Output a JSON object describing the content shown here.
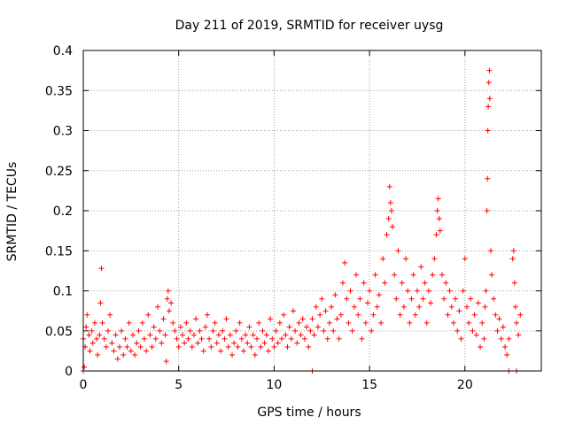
{
  "chart_data": {
    "type": "scatter",
    "title": "Day 211 of 2019, SRMTID for receiver uysg",
    "xlabel": "GPS time / hours",
    "ylabel": "SRMTID / TECUs",
    "xlim": [
      0,
      24
    ],
    "ylim": [
      0,
      0.4
    ],
    "xticks": [
      0,
      5,
      10,
      15,
      20
    ],
    "xtick_labels": [
      "0",
      "5",
      "10",
      "15",
      "20"
    ],
    "yticks": [
      0,
      0.05,
      0.1,
      0.15,
      0.2,
      0.25,
      0.3,
      0.35,
      0.4
    ],
    "ytick_labels": [
      "0",
      "0.05",
      "0.1",
      "0.15",
      "0.2",
      "0.25",
      "0.3",
      "0.35",
      "0.4"
    ],
    "grid": true,
    "marker": "+",
    "color": "#ff0000",
    "series": [
      {
        "name": "SRMTID",
        "points": [
          [
            0.0,
            0.04
          ],
          [
            0.1,
            0.03
          ],
          [
            0.15,
            0.055
          ],
          [
            0.2,
            0.07
          ],
          [
            0.3,
            0.045
          ],
          [
            0.35,
            0.025
          ],
          [
            0.45,
            0.05
          ],
          [
            0.5,
            0.035
          ],
          [
            0.6,
            0.06
          ],
          [
            0.7,
            0.04
          ],
          [
            0.75,
            0.02
          ],
          [
            0.85,
            0.045
          ],
          [
            0.9,
            0.085
          ],
          [
            0.95,
            0.128
          ],
          [
            1.0,
            0.06
          ],
          [
            1.1,
            0.04
          ],
          [
            1.2,
            0.03
          ],
          [
            1.3,
            0.05
          ],
          [
            1.4,
            0.07
          ],
          [
            1.5,
            0.035
          ],
          [
            1.6,
            0.025
          ],
          [
            1.7,
            0.045
          ],
          [
            1.8,
            0.015
          ],
          [
            1.9,
            0.03
          ],
          [
            2.0,
            0.05
          ],
          [
            2.1,
            0.02
          ],
          [
            2.2,
            0.04
          ],
          [
            2.3,
            0.03
          ],
          [
            2.4,
            0.06
          ],
          [
            2.5,
            0.025
          ],
          [
            2.6,
            0.045
          ],
          [
            2.7,
            0.02
          ],
          [
            2.8,
            0.035
          ],
          [
            2.9,
            0.05
          ],
          [
            3.0,
            0.03
          ],
          [
            3.1,
            0.06
          ],
          [
            3.2,
            0.04
          ],
          [
            3.3,
            0.025
          ],
          [
            3.4,
            0.07
          ],
          [
            3.5,
            0.045
          ],
          [
            3.6,
            0.03
          ],
          [
            3.7,
            0.055
          ],
          [
            3.8,
            0.04
          ],
          [
            3.9,
            0.08
          ],
          [
            4.0,
            0.05
          ],
          [
            4.1,
            0.035
          ],
          [
            4.2,
            0.065
          ],
          [
            4.3,
            0.045
          ],
          [
            4.35,
            0.012
          ],
          [
            4.4,
            0.09
          ],
          [
            4.45,
            0.1
          ],
          [
            4.5,
            0.075
          ],
          [
            4.6,
            0.085
          ],
          [
            4.7,
            0.06
          ],
          [
            4.8,
            0.05
          ],
          [
            4.9,
            0.04
          ],
          [
            5.0,
            0.03
          ],
          [
            5.1,
            0.055
          ],
          [
            5.2,
            0.045
          ],
          [
            5.3,
            0.035
          ],
          [
            5.4,
            0.06
          ],
          [
            5.5,
            0.04
          ],
          [
            5.6,
            0.05
          ],
          [
            5.7,
            0.03
          ],
          [
            5.8,
            0.045
          ],
          [
            5.9,
            0.065
          ],
          [
            6.0,
            0.035
          ],
          [
            6.1,
            0.05
          ],
          [
            6.2,
            0.04
          ],
          [
            6.3,
            0.025
          ],
          [
            6.4,
            0.055
          ],
          [
            6.5,
            0.07
          ],
          [
            6.6,
            0.04
          ],
          [
            6.7,
            0.03
          ],
          [
            6.8,
            0.05
          ],
          [
            6.9,
            0.06
          ],
          [
            7.0,
            0.035
          ],
          [
            7.1,
            0.045
          ],
          [
            7.2,
            0.025
          ],
          [
            7.3,
            0.05
          ],
          [
            7.4,
            0.04
          ],
          [
            7.5,
            0.065
          ],
          [
            7.6,
            0.03
          ],
          [
            7.7,
            0.045
          ],
          [
            7.8,
            0.02
          ],
          [
            7.9,
            0.035
          ],
          [
            8.0,
            0.05
          ],
          [
            8.1,
            0.03
          ],
          [
            8.2,
            0.06
          ],
          [
            8.3,
            0.04
          ],
          [
            8.4,
            0.025
          ],
          [
            8.5,
            0.045
          ],
          [
            8.6,
            0.035
          ],
          [
            8.7,
            0.055
          ],
          [
            8.8,
            0.03
          ],
          [
            8.9,
            0.045
          ],
          [
            9.0,
            0.02
          ],
          [
            9.1,
            0.04
          ],
          [
            9.2,
            0.06
          ],
          [
            9.3,
            0.03
          ],
          [
            9.4,
            0.05
          ],
          [
            9.5,
            0.035
          ],
          [
            9.6,
            0.045
          ],
          [
            9.7,
            0.025
          ],
          [
            9.8,
            0.065
          ],
          [
            9.9,
            0.04
          ],
          [
            10.0,
            0.03
          ],
          [
            10.1,
            0.05
          ],
          [
            10.2,
            0.035
          ],
          [
            10.3,
            0.06
          ],
          [
            10.4,
            0.04
          ],
          [
            10.5,
            0.07
          ],
          [
            10.6,
            0.045
          ],
          [
            10.7,
            0.03
          ],
          [
            10.8,
            0.055
          ],
          [
            10.9,
            0.04
          ],
          [
            11.0,
            0.075
          ],
          [
            11.1,
            0.05
          ],
          [
            11.2,
            0.035
          ],
          [
            11.3,
            0.06
          ],
          [
            11.4,
            0.045
          ],
          [
            11.5,
            0.065
          ],
          [
            11.6,
            0.04
          ],
          [
            11.7,
            0.055
          ],
          [
            11.8,
            0.03
          ],
          [
            11.9,
            0.05
          ],
          [
            12.0,
            0.065
          ],
          [
            12.1,
            0.045
          ],
          [
            12.2,
            0.08
          ],
          [
            12.3,
            0.055
          ],
          [
            12.4,
            0.07
          ],
          [
            12.5,
            0.09
          ],
          [
            12.6,
            0.05
          ],
          [
            12.7,
            0.075
          ],
          [
            12.8,
            0.04
          ],
          [
            12.9,
            0.06
          ],
          [
            13.0,
            0.08
          ],
          [
            13.1,
            0.05
          ],
          [
            13.2,
            0.095
          ],
          [
            13.3,
            0.065
          ],
          [
            13.4,
            0.04
          ],
          [
            13.5,
            0.07
          ],
          [
            13.6,
            0.11
          ],
          [
            13.7,
            0.135
          ],
          [
            13.8,
            0.09
          ],
          [
            13.9,
            0.06
          ],
          [
            14.0,
            0.1
          ],
          [
            14.1,
            0.05
          ],
          [
            14.2,
            0.08
          ],
          [
            14.3,
            0.12
          ],
          [
            14.4,
            0.07
          ],
          [
            14.5,
            0.09
          ],
          [
            14.6,
            0.04
          ],
          [
            14.7,
            0.11
          ],
          [
            14.8,
            0.06
          ],
          [
            14.9,
            0.085
          ],
          [
            15.0,
            0.1
          ],
          [
            15.1,
            0.05
          ],
          [
            15.2,
            0.07
          ],
          [
            15.3,
            0.12
          ],
          [
            15.4,
            0.08
          ],
          [
            15.5,
            0.095
          ],
          [
            15.6,
            0.06
          ],
          [
            15.7,
            0.14
          ],
          [
            15.8,
            0.11
          ],
          [
            15.9,
            0.17
          ],
          [
            16.0,
            0.19
          ],
          [
            16.05,
            0.23
          ],
          [
            16.1,
            0.21
          ],
          [
            16.15,
            0.2
          ],
          [
            16.2,
            0.18
          ],
          [
            16.3,
            0.12
          ],
          [
            16.4,
            0.09
          ],
          [
            16.5,
            0.15
          ],
          [
            16.6,
            0.07
          ],
          [
            16.7,
            0.11
          ],
          [
            16.8,
            0.08
          ],
          [
            16.9,
            0.14
          ],
          [
            17.0,
            0.1
          ],
          [
            17.1,
            0.06
          ],
          [
            17.2,
            0.09
          ],
          [
            17.3,
            0.12
          ],
          [
            17.4,
            0.07
          ],
          [
            17.5,
            0.1
          ],
          [
            17.6,
            0.08
          ],
          [
            17.7,
            0.13
          ],
          [
            17.8,
            0.09
          ],
          [
            17.9,
            0.11
          ],
          [
            18.0,
            0.06
          ],
          [
            18.1,
            0.1
          ],
          [
            18.2,
            0.085
          ],
          [
            18.3,
            0.12
          ],
          [
            18.4,
            0.14
          ],
          [
            18.5,
            0.17
          ],
          [
            18.55,
            0.2
          ],
          [
            18.6,
            0.215
          ],
          [
            18.65,
            0.19
          ],
          [
            18.7,
            0.175
          ],
          [
            18.8,
            0.12
          ],
          [
            18.9,
            0.09
          ],
          [
            19.0,
            0.11
          ],
          [
            19.1,
            0.07
          ],
          [
            19.2,
            0.1
          ],
          [
            19.3,
            0.08
          ],
          [
            19.4,
            0.06
          ],
          [
            19.5,
            0.09
          ],
          [
            19.6,
            0.05
          ],
          [
            19.7,
            0.075
          ],
          [
            19.8,
            0.04
          ],
          [
            19.9,
            0.1
          ],
          [
            20.0,
            0.14
          ],
          [
            20.1,
            0.08
          ],
          [
            20.2,
            0.06
          ],
          [
            20.3,
            0.09
          ],
          [
            20.4,
            0.05
          ],
          [
            20.5,
            0.07
          ],
          [
            20.6,
            0.045
          ],
          [
            20.7,
            0.085
          ],
          [
            20.8,
            0.03
          ],
          [
            20.9,
            0.06
          ],
          [
            21.0,
            0.04
          ],
          [
            21.05,
            0.08
          ],
          [
            21.1,
            0.1
          ],
          [
            21.15,
            0.2
          ],
          [
            21.18,
            0.24
          ],
          [
            21.2,
            0.3
          ],
          [
            21.22,
            0.33
          ],
          [
            21.25,
            0.36
          ],
          [
            21.28,
            0.375
          ],
          [
            21.3,
            0.34
          ],
          [
            21.35,
            0.15
          ],
          [
            21.4,
            0.12
          ],
          [
            21.5,
            0.09
          ],
          [
            21.6,
            0.07
          ],
          [
            21.7,
            0.05
          ],
          [
            21.8,
            0.065
          ],
          [
            21.9,
            0.04
          ],
          [
            22.0,
            0.055
          ],
          [
            22.1,
            0.03
          ],
          [
            22.2,
            0.02
          ],
          [
            22.3,
            0.04
          ],
          [
            22.5,
            0.14
          ],
          [
            22.55,
            0.15
          ],
          [
            22.6,
            0.11
          ],
          [
            22.65,
            0.08
          ],
          [
            22.7,
            0.06
          ],
          [
            22.8,
            0.045
          ],
          [
            22.9,
            0.07
          ],
          [
            0.05,
            0.005
          ],
          [
            12.0,
            0.0
          ],
          [
            22.3,
            0.0
          ],
          [
            22.7,
            0.0
          ],
          [
            0.0,
            0.0
          ]
        ]
      }
    ]
  }
}
